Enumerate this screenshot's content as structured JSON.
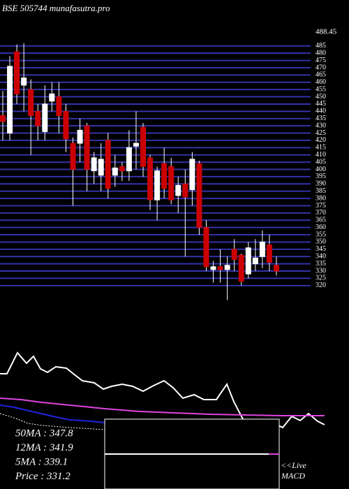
{
  "chart_data": [
    {
      "type": "candlestick",
      "title": "BSE 505744 munafasutra.pro",
      "top_label": "488.45",
      "ylim": [
        305,
        495
      ],
      "grid": true,
      "grid_color": "#3333aa",
      "up_color": "#ffffff",
      "down_color": "#cc0000",
      "yticks": [
        320,
        325,
        330,
        335,
        340,
        345,
        350,
        355,
        360,
        365,
        370,
        375,
        380,
        385,
        390,
        395,
        400,
        405,
        410,
        415,
        420,
        425,
        430,
        435,
        440,
        445,
        450,
        455,
        460,
        465,
        470,
        475,
        480,
        485
      ],
      "open": [
        437,
        425,
        481,
        458,
        455,
        440,
        426,
        447,
        450,
        440,
        418,
        418,
        430,
        399,
        396,
        420,
        396,
        402,
        399,
        416,
        429,
        408,
        379,
        404,
        402,
        382,
        390,
        386,
        404,
        360,
        331,
        333,
        331,
        345,
        341,
        328,
        335,
        340,
        348,
        334
      ],
      "high": [
        454,
        478,
        486,
        487,
        462,
        445,
        458,
        460,
        460,
        445,
        422,
        435,
        432,
        412,
        418,
        425,
        410,
        405,
        427,
        440,
        432,
        410,
        402,
        415,
        408,
        395,
        400,
        412,
        406,
        365,
        337,
        345,
        340,
        352,
        342,
        350,
        352,
        358,
        355,
        340
      ],
      "low": [
        420,
        420,
        445,
        440,
        410,
        420,
        420,
        440,
        425,
        412,
        375,
        405,
        385,
        390,
        385,
        380,
        388,
        392,
        392,
        400,
        395,
        372,
        365,
        380,
        376,
        370,
        340,
        375,
        355,
        330,
        322,
        322,
        310,
        330,
        320,
        325,
        330,
        332,
        330,
        327
      ],
      "close": [
        433,
        471,
        452,
        463,
        437,
        430,
        445,
        452,
        437,
        421,
        400,
        427,
        400,
        408,
        407,
        387,
        401,
        399,
        415,
        418,
        402,
        379,
        399,
        387,
        379,
        389,
        381,
        407,
        360,
        333,
        333,
        331,
        334,
        338,
        323,
        346,
        339,
        350,
        336,
        330
      ]
    },
    {
      "type": "line",
      "ylim": [
        0,
        130
      ],
      "series": [
        {
          "color": "#ffffff",
          "dash": false,
          "x": [
            0,
            10,
            25,
            38,
            48,
            58,
            68,
            80,
            95,
            105,
            118,
            135,
            148,
            160,
            175,
            190,
            205,
            220,
            235,
            248,
            262,
            278,
            292,
            310,
            325,
            335,
            348,
            360,
            375,
            390,
            405,
            418,
            430,
            442,
            455,
            465
          ],
          "values": [
            85,
            85,
            115,
            100,
            110,
            92,
            87,
            95,
            93,
            85,
            75,
            72,
            63,
            67,
            70,
            67,
            60,
            68,
            75,
            65,
            50,
            55,
            48,
            48,
            70,
            45,
            20,
            15,
            10,
            15,
            8,
            24,
            18,
            28,
            17,
            12
          ]
        },
        {
          "color": "#dd44dd",
          "dash": false,
          "x": [
            0,
            30,
            60,
            100,
            150,
            200,
            250,
            300,
            350,
            400,
            465
          ],
          "values": [
            50,
            48,
            44,
            40,
            35,
            31,
            29,
            27,
            26,
            25,
            25
          ]
        },
        {
          "color": "#2222dd",
          "dash": false,
          "x": [
            0,
            20,
            50,
            80,
            100,
            130,
            150
          ],
          "values": [
            40,
            37,
            30,
            23,
            19,
            17,
            15
          ]
        },
        {
          "color": "#ffffff",
          "dash": true,
          "x": [
            0,
            20,
            40,
            60,
            100,
            150
          ],
          "values": [
            28,
            22,
            14,
            11,
            8,
            5
          ]
        }
      ]
    },
    {
      "type": "text",
      "lines": [
        "50MA : 347.8",
        "12MA : 341.9",
        "5MA : 339.1",
        "Price  : 331.2"
      ],
      "live": "<<Live",
      "macd": "MACD"
    }
  ]
}
